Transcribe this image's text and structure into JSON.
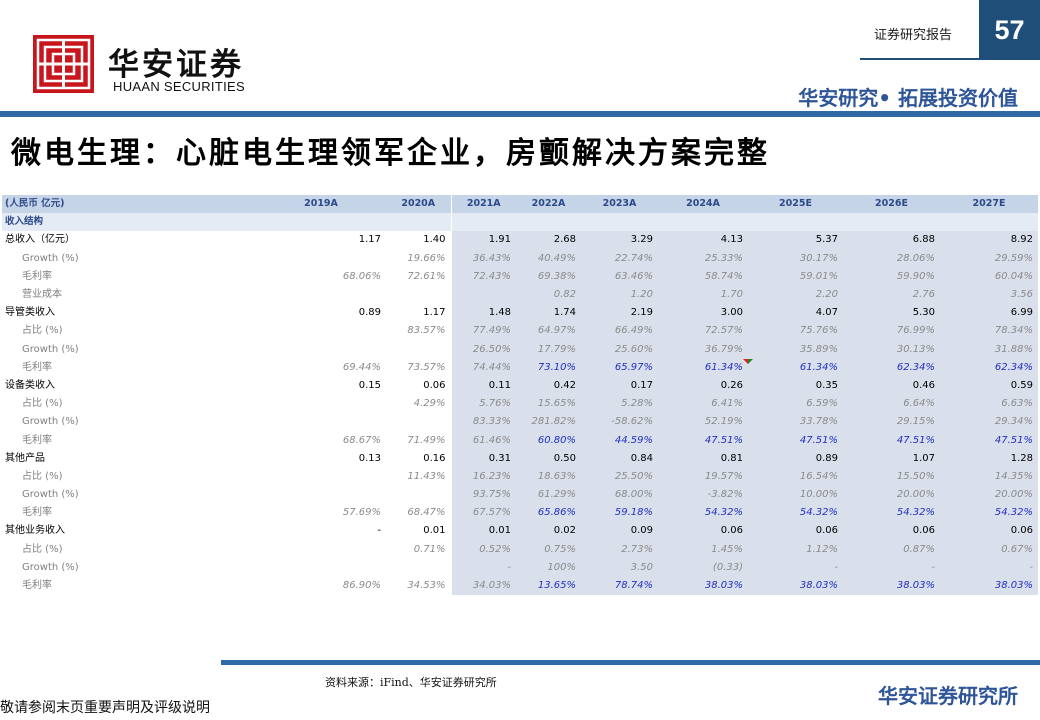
{
  "header": {
    "logo_cn": "华安证券",
    "logo_en": "HUAAN SECURITIES",
    "report_label": "证券研究报告",
    "page_number": "57",
    "slogan": "华安研究• 拓展投资价值",
    "brand_color": "#c8161d",
    "accent_color": "#1f4e79"
  },
  "title": "微电生理：心脏电生理领军企业，房颤解决方案完整",
  "table": {
    "columns": [
      "(人民币 亿元)",
      "2019A",
      "2020A",
      "2021A",
      "2022A",
      "2023A",
      "2024A",
      "2025E",
      "2026E",
      "2027E"
    ],
    "rows": [
      {
        "type": "sec",
        "label": "收入结构",
        "values": [
          "",
          "",
          "",
          "",
          "",
          "",
          "",
          "",
          ""
        ]
      },
      {
        "type": "main",
        "label": "总收入（亿元）",
        "values": [
          "1.17",
          "1.40",
          "1.91",
          "2.68",
          "3.29",
          "4.13",
          "5.37",
          "6.88",
          "8.92"
        ]
      },
      {
        "type": "sub",
        "label": "Growth (%)",
        "values": [
          "",
          "19.66%",
          "36.43%",
          "40.49%",
          "22.74%",
          "25.33%",
          "30.17%",
          "28.06%",
          "29.59%"
        ]
      },
      {
        "type": "sub",
        "label": "毛利率",
        "values": [
          "68.06%",
          "72.61%",
          "72.43%",
          "69.38%",
          "63.46%",
          "58.74%",
          "59.01%",
          "59.90%",
          "60.04%"
        ]
      },
      {
        "type": "sub",
        "label": "营业成本",
        "values": [
          "",
          "",
          "",
          "0.82",
          "1.20",
          "1.70",
          "2.20",
          "2.76",
          "3.56"
        ]
      },
      {
        "type": "main",
        "label": "导管类收入",
        "values": [
          "0.89",
          "1.17",
          "1.48",
          "1.74",
          "2.19",
          "3.00",
          "4.07",
          "5.30",
          "6.99"
        ]
      },
      {
        "type": "sub",
        "label": "占比 (%)",
        "values": [
          "",
          "83.57%",
          "77.49%",
          "64.97%",
          "66.49%",
          "72.57%",
          "75.76%",
          "76.99%",
          "78.34%"
        ]
      },
      {
        "type": "sub",
        "label": "Growth (%)",
        "values": [
          "",
          "",
          "26.50%",
          "17.79%",
          "25.60%",
          "36.79%",
          "35.89%",
          "30.13%",
          "31.88%"
        ]
      },
      {
        "type": "sub",
        "label": "毛利率",
        "values": [
          "69.44%",
          "73.57%",
          "74.44%",
          "73.10%",
          "65.97%",
          "61.34%",
          "61.34%",
          "62.34%",
          "62.34%"
        ],
        "blue_from": 3,
        "marks": {
          "6": "red",
          "7": "green"
        }
      },
      {
        "type": "main",
        "label": "设备类收入",
        "values": [
          "0.15",
          "0.06",
          "0.11",
          "0.42",
          "0.17",
          "0.26",
          "0.35",
          "0.46",
          "0.59"
        ]
      },
      {
        "type": "sub",
        "label": "占比 (%)",
        "values": [
          "",
          "4.29%",
          "5.76%",
          "15.65%",
          "5.28%",
          "6.41%",
          "6.59%",
          "6.64%",
          "6.63%"
        ]
      },
      {
        "type": "sub",
        "label": "Growth (%)",
        "values": [
          "",
          "",
          "83.33%",
          "281.82%",
          "-58.62%",
          "52.19%",
          "33.78%",
          "29.15%",
          "29.34%"
        ]
      },
      {
        "type": "sub",
        "label": "毛利率",
        "values": [
          "68.67%",
          "71.49%",
          "61.46%",
          "60.80%",
          "44.59%",
          "47.51%",
          "47.51%",
          "47.51%",
          "47.51%"
        ],
        "blue_from": 3
      },
      {
        "type": "main",
        "label": "其他产品",
        "values": [
          "0.13",
          "0.16",
          "0.31",
          "0.50",
          "0.84",
          "0.81",
          "0.89",
          "1.07",
          "1.28"
        ]
      },
      {
        "type": "sub",
        "label": "占比 (%)",
        "values": [
          "",
          "11.43%",
          "16.23%",
          "18.63%",
          "25.50%",
          "19.57%",
          "16.54%",
          "15.50%",
          "14.35%"
        ]
      },
      {
        "type": "sub",
        "label": "Growth (%)",
        "values": [
          "",
          "",
          "93.75%",
          "61.29%",
          "68.00%",
          "-3.82%",
          "10.00%",
          "20.00%",
          "20.00%"
        ]
      },
      {
        "type": "sub",
        "label": "毛利率",
        "values": [
          "57.69%",
          "68.47%",
          "67.57%",
          "65.86%",
          "59.18%",
          "54.32%",
          "54.32%",
          "54.32%",
          "54.32%"
        ],
        "blue_from": 3
      },
      {
        "type": "main",
        "label": "其他业务收入",
        "values": [
          "-",
          "0.01",
          "0.01",
          "0.02",
          "0.09",
          "0.06",
          "0.06",
          "0.06",
          "0.06"
        ]
      },
      {
        "type": "sub",
        "label": "占比 (%)",
        "values": [
          "",
          "0.71%",
          "0.52%",
          "0.75%",
          "2.73%",
          "1.45%",
          "1.12%",
          "0.87%",
          "0.67%"
        ]
      },
      {
        "type": "sub",
        "label": "Growth (%)",
        "values": [
          "",
          "",
          "-",
          "100%",
          "3.50",
          "(0.33)",
          "-",
          "-",
          "-"
        ]
      },
      {
        "type": "sub",
        "label": "毛利率",
        "values": [
          "86.90%",
          "34.53%",
          "34.03%",
          "13.65%",
          "78.74%",
          "38.03%",
          "38.03%",
          "38.03%",
          "38.03%"
        ],
        "blue_from": 3
      }
    ]
  },
  "footer": {
    "source": "资料来源：iFind、华安证券研究所",
    "disclaimer": "敬请参阅末页重要声明及评级说明",
    "brand": "华安证券研究所"
  }
}
